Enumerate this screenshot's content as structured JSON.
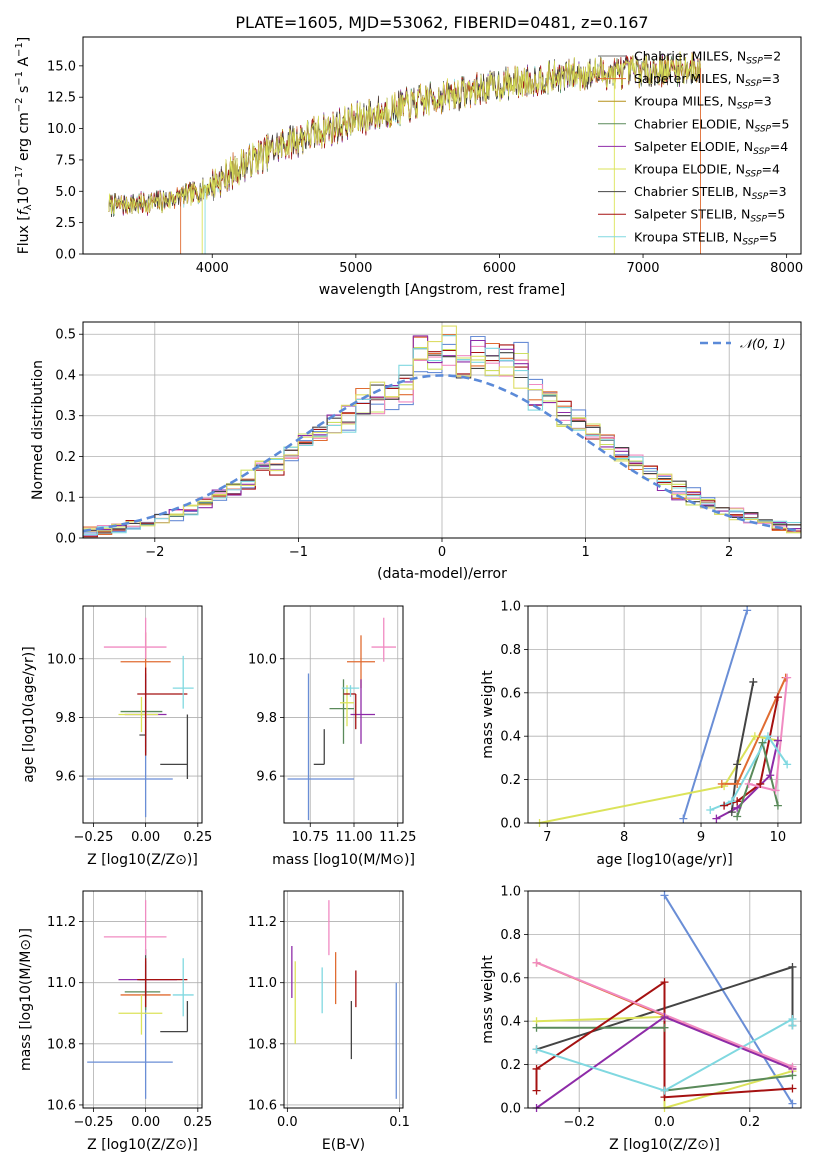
{
  "chart_data": [
    {
      "id": "spectrum",
      "type": "line",
      "title": "PLATE=1605, MJD=53062, FIBERID=0481, z=0.167",
      "xlabel": "wavelength [Angstrom, rest frame]",
      "ylabel": "Flux [f_λ 10^-17 erg cm^-2 s^-1 A^-1]",
      "xlim": [
        3100,
        8100
      ],
      "ylim": [
        0,
        17.3
      ],
      "xticks": [
        4000,
        5000,
        6000,
        7000,
        8000
      ],
      "yticks": [
        0.0,
        2.5,
        5.0,
        7.5,
        10.0,
        12.5,
        15.0
      ],
      "legend_position": "top-right",
      "data_range": [
        3280,
        7400
      ],
      "continuum": [
        [
          3280,
          3.9
        ],
        [
          3600,
          4.1
        ],
        [
          3900,
          4.9
        ],
        [
          4000,
          5.5
        ],
        [
          4200,
          7.0
        ],
        [
          4500,
          8.8
        ],
        [
          5000,
          10.7
        ],
        [
          5500,
          12.3
        ],
        [
          6000,
          13.5
        ],
        [
          6500,
          14.3
        ],
        [
          7000,
          14.6
        ],
        [
          7400,
          14.8
        ]
      ],
      "series": [
        {
          "name": "Chabrier MILES, N_SSP=2",
          "color": "#6d6d6d"
        },
        {
          "name": "Salpeter MILES, N_SSP=3",
          "color": "#e06c32"
        },
        {
          "name": "Kroupa MILES, N_SSP=3",
          "color": "#b5911a"
        },
        {
          "name": "Chabrier ELODIE, N_SSP=5",
          "color": "#5a8a5a"
        },
        {
          "name": "Salpeter ELODIE, N_SSP=4",
          "color": "#8e2ba8"
        },
        {
          "name": "Kroupa ELODIE, N_SSP=4",
          "color": "#dbe35a"
        },
        {
          "name": "Chabrier STELIB, N_SSP=3",
          "color": "#444444"
        },
        {
          "name": "Salpeter STELIB, N_SSP=5",
          "color": "#a51111"
        },
        {
          "name": "Kroupa STELIB, N_SSP=5",
          "color": "#80d8e0"
        }
      ]
    },
    {
      "id": "residuals",
      "type": "bar",
      "xlabel": "(data-model)/error",
      "ylabel": "Normed distribution",
      "xlim": [
        -2.5,
        2.5
      ],
      "ylim": [
        0,
        0.53
      ],
      "xticks": [
        -2,
        -1,
        0,
        1,
        2
      ],
      "yticks": [
        0.0,
        0.1,
        0.2,
        0.3,
        0.4,
        0.5
      ],
      "bin_width": 0.1,
      "legend": "𝒩(0, 1)",
      "legend_position": "top-right",
      "hist_colors": [
        "#6a8ed6",
        "#e06c32",
        "#cde062",
        "#a51111",
        "#f08bc2",
        "#8e2ba8",
        "#444444",
        "#80d8e0",
        "#dddd66"
      ],
      "gaussian_color": "#5b8ad8"
    },
    {
      "id": "age_vs_Z",
      "type": "scatter",
      "xlabel": "Z [log10(Z/Z⊙)]",
      "ylabel": "age  [log10(age/yr)]",
      "xlim": [
        -0.3,
        0.27
      ],
      "ylim": [
        9.44,
        10.18
      ],
      "xticks": [
        -0.25,
        0.0,
        0.25
      ],
      "xticklabels": [
        "−0.25",
        "0.00",
        "0.25"
      ],
      "yticks": [
        9.6,
        9.8,
        10.0
      ],
      "yticklabels": [
        "9.6",
        "9.8",
        "10.0"
      ],
      "points": [
        {
          "x": 0.0,
          "xerr": [
            0.28,
            0.13
          ],
          "y": 9.59,
          "yerr": [
            0.13,
            0.17
          ],
          "color": "#6a8ed6"
        },
        {
          "x": 0.0,
          "xerr": [
            0.12,
            0.12
          ],
          "y": 9.99,
          "yerr": [
            0.1,
            0.1
          ],
          "color": "#e06c32"
        },
        {
          "x": 0.0,
          "xerr": [
            0.12,
            0.08
          ],
          "y": 9.82,
          "yerr": [
            0.12,
            0.11
          ],
          "color": "#5a8a5a"
        },
        {
          "x": 0.0,
          "xerr": [
            0.1,
            0.1
          ],
          "y": 9.81,
          "yerr": [
            0.13,
            0.14
          ],
          "color": "#8e2ba8"
        },
        {
          "x": -0.02,
          "xerr": [
            0.11,
            0.08
          ],
          "y": 9.81,
          "yerr": [
            0.06,
            0.06
          ],
          "color": "#dbe35a"
        },
        {
          "x": 0.2,
          "xerr": [
            0.13,
            0.0
          ],
          "y": 9.64,
          "yerr": [
            0.05,
            0.17
          ],
          "color": "#444444"
        },
        {
          "x": 0.0,
          "xerr": [
            0.03,
            0.0
          ],
          "y": 9.74,
          "yerr": [
            0.07,
            0.06
          ],
          "color": "#555555"
        },
        {
          "x": 0.0,
          "xerr": [
            0.04,
            0.2
          ],
          "y": 9.88,
          "yerr": [
            0.21,
            0.09
          ],
          "color": "#a51111"
        },
        {
          "x": 0.0,
          "xerr": [
            0.2,
            0.1
          ],
          "y": 10.04,
          "yerr": [
            0.04,
            0.1
          ],
          "color": "#f08bc2"
        },
        {
          "x": 0.18,
          "xerr": [
            0.05,
            0.05
          ],
          "y": 9.9,
          "yerr": [
            0.07,
            0.11
          ],
          "color": "#80d8e0"
        }
      ]
    },
    {
      "id": "age_vs_mass",
      "type": "scatter",
      "xlabel": "mass [log10(M/M⊙)]",
      "ylabel": "",
      "xlim": [
        10.6,
        11.28
      ],
      "ylim": [
        9.44,
        10.18
      ],
      "xticks": [
        10.75,
        11.0,
        11.25
      ],
      "xticklabels": [
        "10.75",
        "11.00",
        "11.25"
      ],
      "yticks": [
        9.6,
        9.8,
        10.0
      ],
      "yticklabels": [
        "9.6",
        "9.8",
        "10.0"
      ],
      "points": [
        {
          "x": 10.74,
          "xerr": [
            0.12,
            0.26
          ],
          "y": 9.59,
          "yerr": [
            0.14,
            0.36
          ],
          "color": "#6a8ed6"
        },
        {
          "x": 11.04,
          "xerr": [
            0.08,
            0.08
          ],
          "y": 9.99,
          "yerr": [
            0.09,
            0.09
          ],
          "color": "#e06c32"
        },
        {
          "x": 10.94,
          "xerr": [
            0.08,
            0.06
          ],
          "y": 9.83,
          "yerr": [
            0.12,
            0.1
          ],
          "color": "#5a8a5a"
        },
        {
          "x": 11.04,
          "xerr": [
            0.06,
            0.08
          ],
          "y": 9.81,
          "yerr": [
            0.1,
            0.12
          ],
          "color": "#8e2ba8"
        },
        {
          "x": 10.96,
          "xerr": [
            0.04,
            0.04
          ],
          "y": 9.85,
          "yerr": [
            0.08,
            0.06
          ],
          "color": "#dbe35a"
        },
        {
          "x": 10.83,
          "xerr": [
            0.06,
            0.0
          ],
          "y": 9.64,
          "yerr": [
            0.0,
            0.12
          ],
          "color": "#444444"
        },
        {
          "x": 11.01,
          "xerr": [
            0.07,
            0.0
          ],
          "y": 9.88,
          "yerr": [
            0.12,
            0.0
          ],
          "color": "#a51111"
        },
        {
          "x": 11.17,
          "xerr": [
            0.07,
            0.07
          ],
          "y": 10.04,
          "yerr": [
            0.05,
            0.1
          ],
          "color": "#f08bc2"
        },
        {
          "x": 10.98,
          "xerr": [
            0.05,
            0.05
          ],
          "y": 9.9,
          "yerr": [
            0.03,
            0.01
          ],
          "color": "#80d8e0"
        }
      ]
    },
    {
      "id": "weight_vs_age",
      "type": "line",
      "xlabel": "age  [log10(age/yr)]",
      "ylabel": "mass weight",
      "xlim": [
        6.75,
        10.3
      ],
      "ylim": [
        0,
        1
      ],
      "xticks": [
        7,
        8,
        9,
        10
      ],
      "yticks": [
        0.0,
        0.2,
        0.4,
        0.6,
        0.8,
        1.0
      ],
      "series": [
        {
          "color": "#6a8ed6",
          "x": [
            8.77,
            9.6
          ],
          "y": [
            0.02,
            0.98
          ]
        },
        {
          "color": "#dbe35a",
          "x": [
            6.9,
            9.3,
            9.7,
            10.0
          ],
          "y": [
            0.0,
            0.17,
            0.4,
            0.38
          ]
        },
        {
          "color": "#444444",
          "x": [
            9.4,
            9.47,
            9.68
          ],
          "y": [
            0.05,
            0.27,
            0.65
          ]
        },
        {
          "color": "#e06c32",
          "x": [
            9.27,
            9.47,
            10.1
          ],
          "y": [
            0.18,
            0.18,
            0.67
          ]
        },
        {
          "color": "#8e2ba8",
          "x": [
            9.2,
            9.47,
            9.9,
            10.0
          ],
          "y": [
            0.02,
            0.07,
            0.22,
            0.38
          ]
        },
        {
          "color": "#a51111",
          "x": [
            9.3,
            9.47,
            9.77,
            10.0
          ],
          "y": [
            0.08,
            0.1,
            0.18,
            0.58
          ]
        },
        {
          "color": "#5a8a5a",
          "x": [
            9.47,
            9.8,
            10.0
          ],
          "y": [
            0.03,
            0.37,
            0.08
          ]
        },
        {
          "color": "#f08bc2",
          "x": [
            9.62,
            9.97,
            10.12
          ],
          "y": [
            0.18,
            0.15,
            0.67
          ]
        },
        {
          "color": "#80d8e0",
          "x": [
            9.12,
            9.4,
            9.87,
            10.12
          ],
          "y": [
            0.06,
            0.1,
            0.4,
            0.27
          ]
        }
      ]
    },
    {
      "id": "mass_vs_Z",
      "type": "scatter",
      "xlabel": "Z [log10(Z/Z⊙)]",
      "ylabel": "mass [log10(M/M⊙)]",
      "xlim": [
        -0.3,
        0.27
      ],
      "ylim": [
        10.59,
        11.3
      ],
      "xticks": [
        -0.25,
        0.0,
        0.25
      ],
      "xticklabels": [
        "−0.25",
        "0.00",
        "0.25"
      ],
      "yticks": [
        10.6,
        10.8,
        11.0,
        11.2
      ],
      "yticklabels": [
        "10.6",
        "10.8",
        "11.0",
        "11.2"
      ],
      "points": [
        {
          "x": 0.0,
          "xerr": [
            0.28,
            0.13
          ],
          "y": 10.74,
          "yerr": [
            0.12,
            0.26
          ],
          "color": "#6a8ed6"
        },
        {
          "x": 0.0,
          "xerr": [
            0.12,
            0.12
          ],
          "y": 10.96,
          "yerr": [
            0.04,
            0.1
          ],
          "color": "#e06c32"
        },
        {
          "x": 0.0,
          "xerr": [
            0.1,
            0.07
          ],
          "y": 10.97,
          "yerr": [
            0.06,
            0.06
          ],
          "color": "#5a8a5a"
        },
        {
          "x": 0.0,
          "xerr": [
            0.13,
            0.15
          ],
          "y": 11.01,
          "yerr": [
            0.05,
            0.06
          ],
          "color": "#8e2ba8"
        },
        {
          "x": -0.02,
          "xerr": [
            0.11,
            0.1
          ],
          "y": 10.9,
          "yerr": [
            0.07,
            0.06
          ],
          "color": "#dbe35a"
        },
        {
          "x": 0.2,
          "xerr": [
            0.13,
            0.0
          ],
          "y": 10.84,
          "yerr": [
            0.0,
            0.1
          ],
          "color": "#444444"
        },
        {
          "x": 0.0,
          "xerr": [
            0.03,
            0.0
          ],
          "y": 11.01,
          "yerr": [
            0.06,
            0.1
          ],
          "color": "#555555"
        },
        {
          "x": 0.0,
          "xerr": [
            0.04,
            0.2
          ],
          "y": 11.01,
          "yerr": [
            0.09,
            0.07
          ],
          "color": "#a51111"
        },
        {
          "x": 0.0,
          "xerr": [
            0.2,
            0.1
          ],
          "y": 11.15,
          "yerr": [
            0.06,
            0.12
          ],
          "color": "#f08bc2"
        },
        {
          "x": 0.18,
          "xerr": [
            0.05,
            0.05
          ],
          "y": 10.96,
          "yerr": [
            0.07,
            0.12
          ],
          "color": "#80d8e0"
        }
      ]
    },
    {
      "id": "mass_vs_ebv",
      "type": "scatter",
      "xlabel": "E(B-V)",
      "ylabel": "",
      "xlim": [
        -0.003,
        0.103
      ],
      "ylim": [
        10.59,
        11.3
      ],
      "xticks": [
        0.0,
        0.1
      ],
      "xticklabels": [
        "0.0",
        "0.1"
      ],
      "yticks": [
        10.6,
        10.8,
        11.0,
        11.2
      ],
      "yticklabels": [
        "10.6",
        "10.8",
        "11.0",
        "11.2"
      ],
      "points": [
        {
          "x": 0.004,
          "xerr": [
            0,
            0
          ],
          "y": 11.02,
          "yerr": [
            0.07,
            0.1
          ],
          "color": "#8e2ba8"
        },
        {
          "x": 0.007,
          "xerr": [
            0,
            0
          ],
          "y": 10.95,
          "yerr": [
            0.15,
            0.12
          ],
          "color": "#dbe35a"
        },
        {
          "x": 0.031,
          "xerr": [
            0,
            0
          ],
          "y": 10.98,
          "yerr": [
            0.08,
            0.07
          ],
          "color": "#80d8e0"
        },
        {
          "x": 0.037,
          "xerr": [
            0,
            0
          ],
          "y": 11.18,
          "yerr": [
            0.09,
            0.09
          ],
          "color": "#f08bc2"
        },
        {
          "x": 0.043,
          "xerr": [
            0,
            0
          ],
          "y": 11.01,
          "yerr": [
            0.08,
            0.09
          ],
          "color": "#e06c32"
        },
        {
          "x": 0.057,
          "xerr": [
            0,
            0
          ],
          "y": 10.84,
          "yerr": [
            0.09,
            0.1
          ],
          "color": "#444444"
        },
        {
          "x": 0.061,
          "xerr": [
            0,
            0
          ],
          "y": 10.98,
          "yerr": [
            0.06,
            0.06
          ],
          "color": "#a51111"
        },
        {
          "x": 0.097,
          "xerr": [
            0,
            0
          ],
          "y": 10.81,
          "yerr": [
            0.19,
            0.19
          ],
          "color": "#6a8ed6"
        }
      ]
    },
    {
      "id": "weight_vs_Z",
      "type": "line",
      "xlabel": "Z [log10(Z/Z⊙)]",
      "ylabel": "mass weight",
      "xlim": [
        -0.32,
        0.32
      ],
      "ylim": [
        0,
        1
      ],
      "xticks": [
        -0.2,
        0.0,
        0.2
      ],
      "xticklabels": [
        "−0.2",
        "0.0",
        "0.2"
      ],
      "yticks": [
        0.0,
        0.2,
        0.4,
        0.6,
        0.8,
        1.0
      ],
      "series": [
        {
          "color": "#6a8ed6",
          "x": [
            0.0,
            0.3
          ],
          "y": [
            0.98,
            0.02
          ]
        },
        {
          "color": "#e06c32",
          "x": [
            -0.3,
            0.3
          ],
          "y": [
            0.67,
            0.18
          ]
        },
        {
          "color": "#444444",
          "x": [
            -0.3,
            0.3,
            0.3
          ],
          "y": [
            0.27,
            0.65,
            0.38
          ]
        },
        {
          "color": "#dbe35a",
          "x": [
            -0.3,
            0.0,
            0.0,
            0.3
          ],
          "y": [
            0.4,
            0.42,
            0.0,
            0.17
          ]
        },
        {
          "color": "#5a8a5a",
          "x": [
            -0.3,
            0.0,
            0.0,
            0.3
          ],
          "y": [
            0.37,
            0.37,
            0.08,
            0.15
          ]
        },
        {
          "color": "#8e2ba8",
          "x": [
            -0.3,
            0.0,
            0.3
          ],
          "y": [
            0.0,
            0.42,
            0.18
          ]
        },
        {
          "color": "#a51111",
          "x": [
            -0.3,
            -0.3,
            0.0,
            0.0,
            0.3
          ],
          "y": [
            0.08,
            0.18,
            0.58,
            0.05,
            0.09
          ]
        },
        {
          "color": "#80d8e0",
          "x": [
            -0.3,
            0.0,
            0.3,
            0.3
          ],
          "y": [
            0.27,
            0.08,
            0.41,
            0.38
          ]
        },
        {
          "color": "#f08bc2",
          "x": [
            -0.3,
            0.3
          ],
          "y": [
            0.67,
            0.19
          ]
        }
      ]
    }
  ]
}
